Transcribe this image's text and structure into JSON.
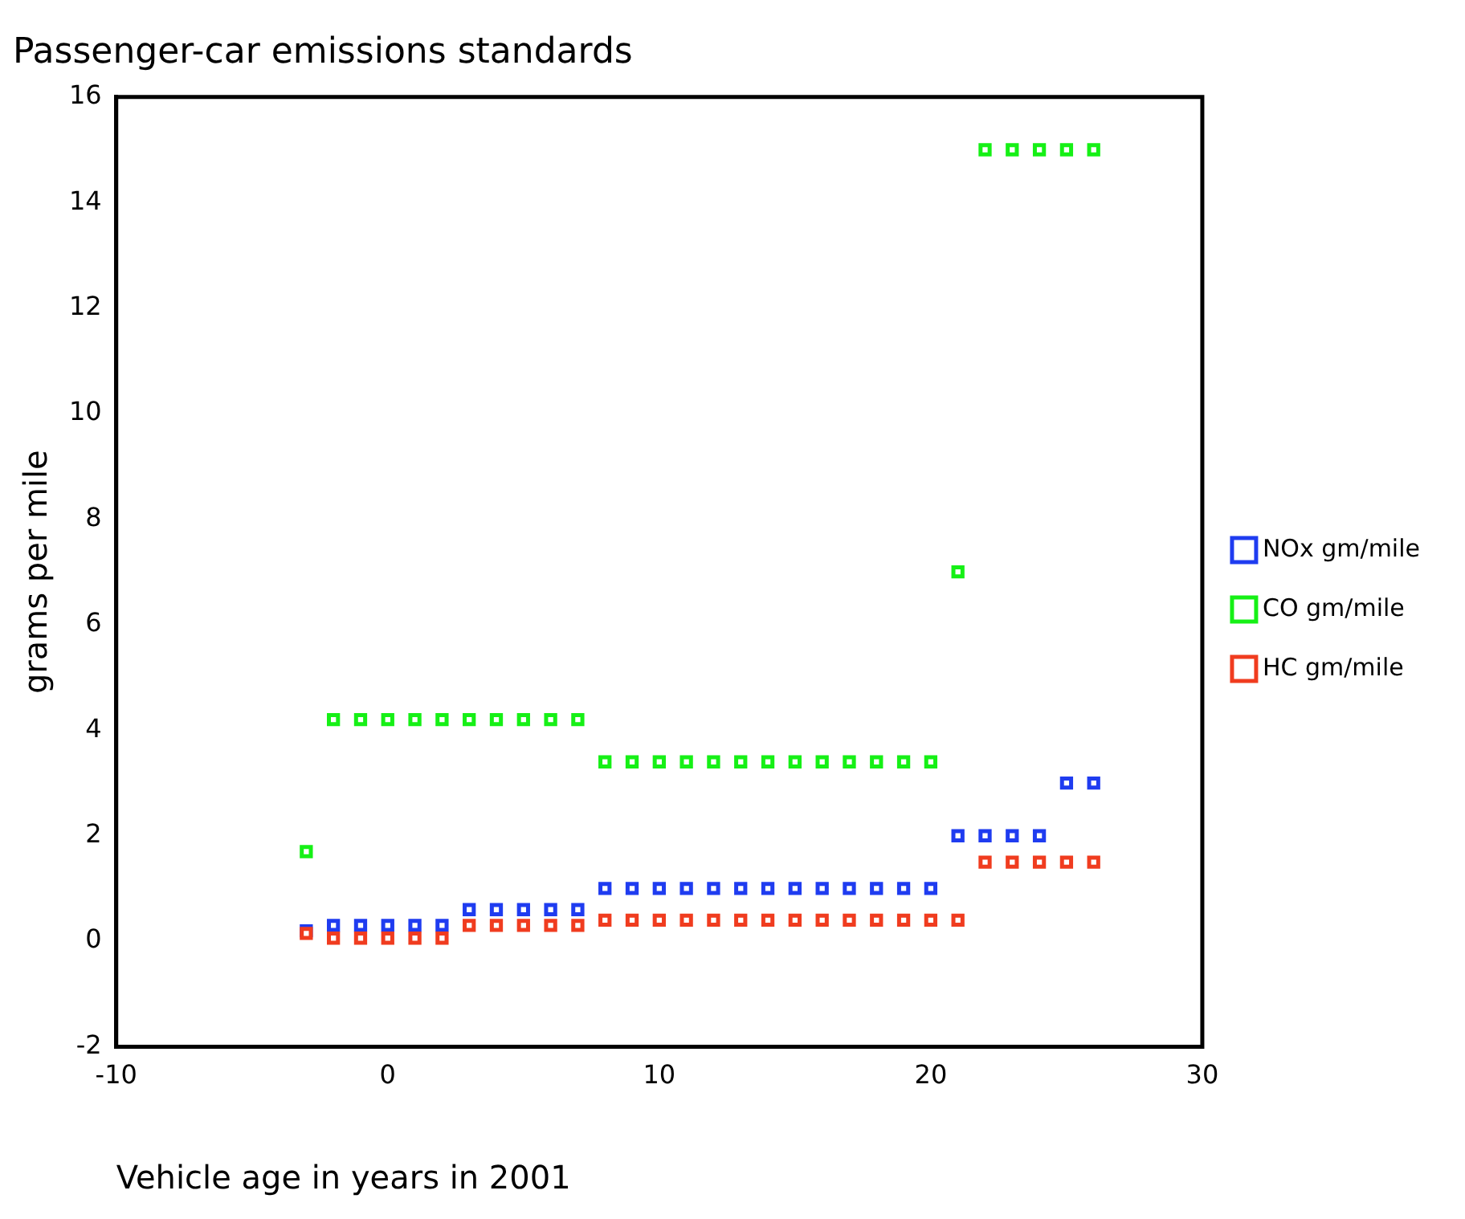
{
  "chart_data": {
    "type": "scatter",
    "title": "Passenger-car emissions standards",
    "xlabel": "Vehicle age in years in 2001",
    "ylabel": "grams per mile",
    "xlim": [
      -10,
      30
    ],
    "xticks": [
      -10,
      0,
      10,
      20,
      30
    ],
    "ylim": [
      -2,
      16
    ],
    "yticks": [
      -2,
      0,
      2,
      4,
      6,
      8,
      10,
      12,
      14,
      16
    ],
    "grid": false,
    "legend": "right",
    "marker": "square",
    "series": [
      {
        "name": "NOx gm/mile",
        "color": "#1f3cf0",
        "x": [
          -3,
          -2,
          -1,
          0,
          1,
          2,
          3,
          4,
          5,
          6,
          7,
          8,
          9,
          10,
          11,
          12,
          13,
          14,
          15,
          16,
          17,
          18,
          19,
          20,
          21,
          22,
          23,
          24,
          25,
          26
        ],
        "values": [
          0.2,
          0.3,
          0.3,
          0.3,
          0.3,
          0.3,
          0.6,
          0.6,
          0.6,
          0.6,
          0.6,
          1.0,
          1.0,
          1.0,
          1.0,
          1.0,
          1.0,
          1.0,
          1.0,
          1.0,
          1.0,
          1.0,
          1.0,
          1.0,
          2.0,
          2.0,
          2.0,
          2.0,
          3.0,
          3.0
        ]
      },
      {
        "name": "CO gm/mile",
        "color": "#16f016",
        "x": [
          -3,
          -2,
          -1,
          0,
          1,
          2,
          3,
          4,
          5,
          6,
          7,
          8,
          9,
          10,
          11,
          12,
          13,
          14,
          15,
          16,
          17,
          18,
          19,
          20,
          21,
          22,
          23,
          24,
          25,
          26
        ],
        "values": [
          1.7,
          4.2,
          4.2,
          4.2,
          4.2,
          4.2,
          4.2,
          4.2,
          4.2,
          4.2,
          4.2,
          3.4,
          3.4,
          3.4,
          3.4,
          3.4,
          3.4,
          3.4,
          3.4,
          3.4,
          3.4,
          3.4,
          3.4,
          3.4,
          7.0,
          15,
          15,
          15,
          15,
          15
        ]
      },
      {
        "name": "HC gm/mile",
        "color": "#f03c1f",
        "x": [
          -3,
          -2,
          -1,
          0,
          1,
          2,
          3,
          4,
          5,
          6,
          7,
          8,
          9,
          10,
          11,
          12,
          13,
          14,
          15,
          16,
          17,
          18,
          19,
          20,
          21,
          22,
          23,
          24,
          25,
          26
        ],
        "values": [
          0.15,
          0.06,
          0.06,
          0.06,
          0.06,
          0.06,
          0.3,
          0.3,
          0.3,
          0.3,
          0.3,
          0.4,
          0.4,
          0.4,
          0.4,
          0.4,
          0.4,
          0.4,
          0.4,
          0.4,
          0.4,
          0.4,
          0.4,
          0.4,
          0.4,
          1.5,
          1.5,
          1.5,
          1.5,
          1.5
        ]
      }
    ]
  }
}
